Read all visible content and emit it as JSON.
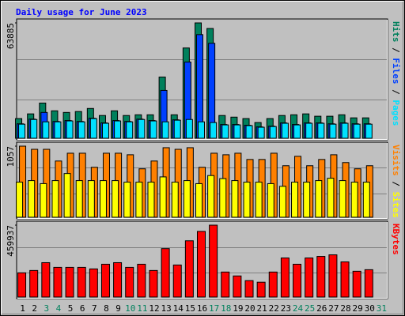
{
  "chart_data": [
    {
      "type": "bar",
      "title": "Daily usage for June 2023",
      "series": [
        {
          "name": "Hits",
          "color": "#00805c",
          "values": [
            10900,
            13500,
            19500,
            15200,
            14300,
            14800,
            16500,
            12600,
            15200,
            12600,
            13000,
            13000,
            33900,
            13000,
            50000,
            63885,
            60800,
            12600,
            11700,
            10900,
            8700,
            10900,
            12600,
            13000,
            13500,
            12200,
            12200,
            13000,
            11300,
            11300,
            null
          ]
        },
        {
          "name": "Files",
          "color": "#0040ff",
          "values": [
            8000,
            10600,
            14300,
            9300,
            9800,
            9300,
            11100,
            8500,
            9800,
            9300,
            10600,
            9800,
            26500,
            10200,
            42200,
            57400,
            52600,
            7600,
            7600,
            7200,
            6300,
            6700,
            8500,
            7600,
            8500,
            8500,
            8000,
            8500,
            8000,
            8000,
            null
          ]
        },
        {
          "name": "Pages",
          "color": "#00e0ff",
          "values": [
            7800,
            10400,
            9100,
            9100,
            9600,
            9100,
            10900,
            8300,
            9600,
            9100,
            10400,
            9600,
            9100,
            10000,
            10400,
            9100,
            8700,
            7400,
            7400,
            7000,
            6100,
            6500,
            8300,
            7400,
            8300,
            8300,
            7800,
            8300,
            7800,
            7800,
            null
          ]
        }
      ],
      "legend_separator": " / ",
      "ylim": [
        0,
        63885
      ],
      "yticks": [
        63885
      ]
    },
    {
      "type": "bar",
      "series": [
        {
          "name": "Visits",
          "color": "#ff8000",
          "values": [
            1057,
            1010,
            1010,
            836,
            952,
            952,
            743,
            952,
            952,
            929,
            720,
            836,
            1034,
            1010,
            1034,
            743,
            952,
            929,
            952,
            859,
            859,
            952,
            766,
            906,
            766,
            859,
            929,
            813,
            720,
            766,
            null
          ]
        },
        {
          "name": "Sites",
          "color": "#ffff00",
          "values": [
            522,
            545,
            500,
            545,
            650,
            545,
            545,
            545,
            545,
            522,
            522,
            522,
            600,
            522,
            545,
            500,
            620,
            575,
            545,
            522,
            522,
            500,
            460,
            522,
            522,
            545,
            580,
            545,
            522,
            522,
            null
          ]
        }
      ],
      "legend_separator": " / ",
      "ylim": [
        0,
        1057
      ],
      "yticks": [
        1057
      ]
    },
    {
      "type": "bar",
      "series": [
        {
          "name": "KBytes",
          "color": "#ff0000",
          "values": [
            155000,
            170000,
            220000,
            190000,
            190000,
            190000,
            180000,
            210000,
            220000,
            190000,
            210000,
            170000,
            310000,
            205000,
            360000,
            420000,
            459937,
            160000,
            135000,
            105000,
            95000,
            160000,
            250000,
            210000,
            250000,
            260000,
            270000,
            225000,
            165000,
            175000,
            null
          ]
        }
      ],
      "ylim": [
        0,
        459937
      ],
      "yticks": [
        459937
      ],
      "categories": [
        "1",
        "2",
        "3",
        "4",
        "5",
        "6",
        "7",
        "8",
        "9",
        "10",
        "11",
        "12",
        "13",
        "14",
        "15",
        "16",
        "17",
        "18",
        "19",
        "20",
        "21",
        "22",
        "23",
        "24",
        "25",
        "26",
        "27",
        "28",
        "29",
        "30",
        "31"
      ],
      "category_colors": [
        "#000000",
        "#000000",
        "#00805c",
        "#00805c",
        "#000000",
        "#000000",
        "#000000",
        "#000000",
        "#000000",
        "#00805c",
        "#00805c",
        "#000000",
        "#000000",
        "#000000",
        "#000000",
        "#000000",
        "#00805c",
        "#00805c",
        "#000000",
        "#000000",
        "#000000",
        "#000000",
        "#000000",
        "#00805c",
        "#00805c",
        "#000000",
        "#000000",
        "#000000",
        "#000000",
        "#000000",
        "#00805c"
      ]
    }
  ]
}
